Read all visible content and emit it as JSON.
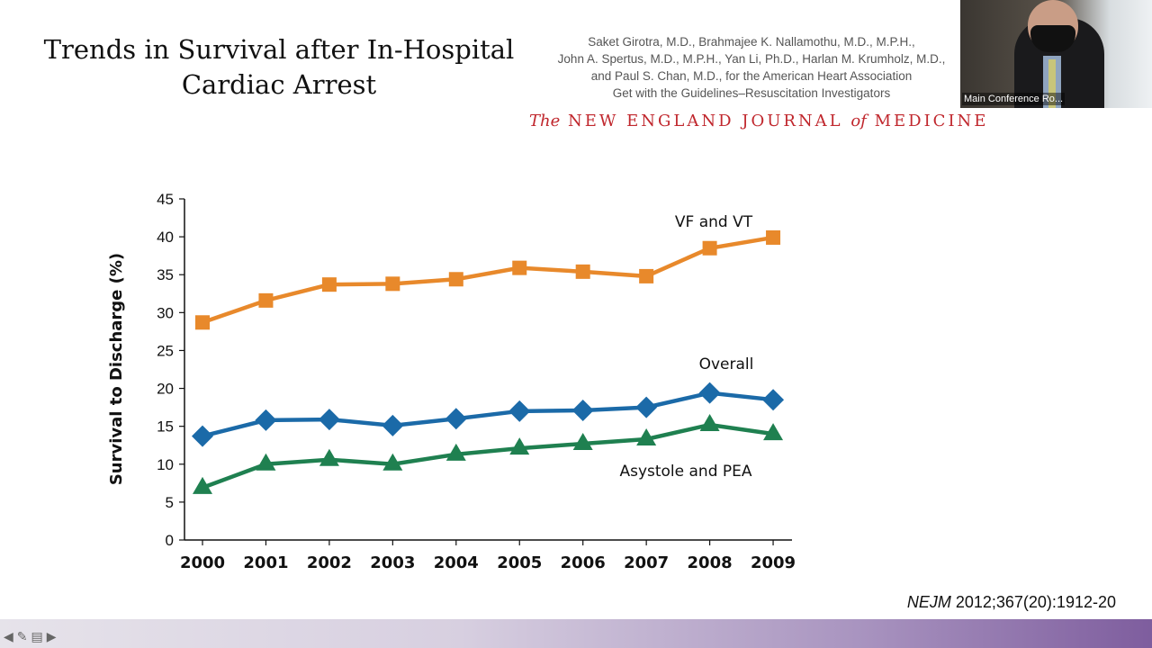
{
  "slide": {
    "title_line1": "Trends in Survival after In-Hospital",
    "title_line2": "Cardiac Arrest",
    "authors": [
      "Saket Girotra, M.D., Brahmajee K. Nallamothu, M.D., M.P.H.,",
      "John A. Spertus, M.D., M.P.H., Yan Li, Ph.D., Harlan M. Krumholz, M.D.,",
      "and Paul S. Chan, M.D., for the American Heart Association",
      "Get with the Guidelines–Resuscitation Investigators"
    ],
    "journal_the": "The",
    "journal_main": " NEW ENGLAND JOURNAL ",
    "journal_of": "of",
    "journal_end": " MEDICINE",
    "citation_italic": "NEJM",
    "citation_rest": " 2012;367(20):1912-20"
  },
  "video": {
    "participant_label": "Main Conference Ro..."
  },
  "toolbar": {
    "icons": [
      "arrow-left-icon",
      "pen-icon",
      "menu-icon",
      "arrow-right-icon"
    ]
  },
  "chart_data": {
    "type": "line",
    "title": "",
    "xlabel": "",
    "ylabel": "Survival to Discharge (%)",
    "ylim": [
      0,
      45
    ],
    "yticks": [
      0,
      5,
      10,
      15,
      20,
      25,
      30,
      35,
      40,
      45
    ],
    "categories": [
      "2000",
      "2001",
      "2002",
      "2003",
      "2004",
      "2005",
      "2006",
      "2007",
      "2008",
      "2009"
    ],
    "grid": false,
    "series": [
      {
        "name": "VF and VT",
        "color": "#e8892b",
        "marker": "square",
        "values": [
          28.7,
          31.6,
          33.7,
          33.8,
          34.4,
          35.9,
          35.4,
          34.8,
          38.5,
          39.9
        ]
      },
      {
        "name": "Overall",
        "color": "#1b6aa8",
        "marker": "diamond",
        "values": [
          13.7,
          15.8,
          15.9,
          15.1,
          16.0,
          17.0,
          17.1,
          17.5,
          19.4,
          18.5
        ]
      },
      {
        "name": "Asystole and PEA",
        "color": "#1f8050",
        "marker": "triangle",
        "values": [
          6.9,
          10.0,
          10.6,
          10.0,
          11.3,
          12.1,
          12.7,
          13.3,
          15.2,
          14.0
        ]
      }
    ]
  }
}
